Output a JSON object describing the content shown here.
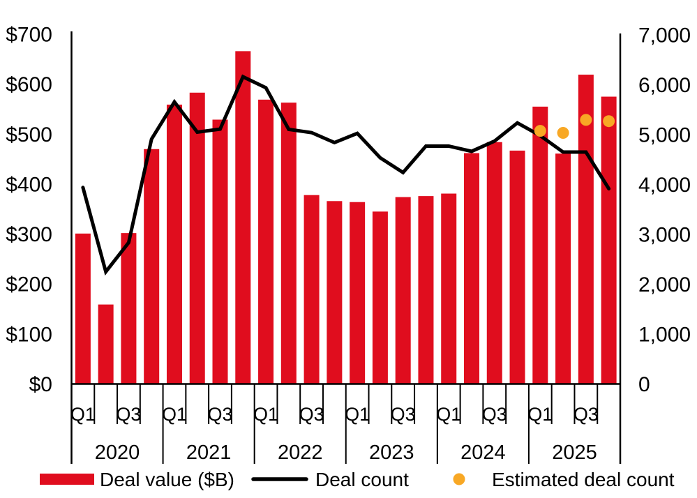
{
  "chart_data": {
    "type": "bar+line+scatter",
    "title": "",
    "categories": [
      "2020 Q1",
      "2020 Q2",
      "2020 Q3",
      "2020 Q4",
      "2021 Q1",
      "2021 Q2",
      "2021 Q3",
      "2021 Q4",
      "2022 Q1",
      "2022 Q2",
      "2022 Q3",
      "2022 Q4",
      "2023 Q1",
      "2023 Q2",
      "2023 Q3",
      "2023 Q4",
      "2024 Q1",
      "2024 Q2",
      "2024 Q3",
      "2024 Q4",
      "2025 Q1",
      "2025 Q2",
      "2025 Q3",
      "2025 Q4"
    ],
    "x_axis": {
      "years": [
        "2020",
        "2021",
        "2022",
        "2023",
        "2024",
        "2025"
      ],
      "quarter_labels": [
        "Q1",
        "Q3"
      ]
    },
    "left_axis": {
      "range": [
        0,
        700
      ],
      "tick_values": [
        0,
        100,
        200,
        300,
        400,
        500,
        600,
        700
      ],
      "tick_labels": [
        "$0",
        "$100",
        "$200",
        "$300",
        "$400",
        "$500",
        "$600",
        "$700"
      ]
    },
    "right_axis": {
      "range": [
        0,
        7000
      ],
      "tick_values": [
        0,
        1000,
        2000,
        3000,
        4000,
        5000,
        6000,
        7000
      ],
      "tick_labels": [
        "0",
        "1,000",
        "2,000",
        "3,000",
        "4,000",
        "5,000",
        "6,000",
        "7,000"
      ]
    },
    "series": [
      {
        "name": "Deal value ($B)",
        "type": "bar",
        "axis": "left",
        "color": "#E00D1E",
        "values": [
          301,
          159,
          302,
          470,
          559,
          583,
          529,
          666,
          569,
          563,
          378,
          366,
          364,
          345,
          374,
          376,
          381,
          462,
          484,
          467,
          555,
          461,
          619,
          575
        ]
      },
      {
        "name": "Deal count",
        "type": "line",
        "axis": "right",
        "color": "#000000",
        "values": [
          3940,
          2250,
          2835,
          4910,
          5655,
          5050,
          5110,
          6160,
          5940,
          5105,
          5040,
          4840,
          5025,
          4535,
          4240,
          4770,
          4770,
          4665,
          4870,
          5235,
          4980,
          4650,
          4650,
          3915
        ]
      },
      {
        "name": "Estimated deal count",
        "type": "scatter",
        "axis": "right",
        "color": "#F8A825",
        "values": [
          null,
          null,
          null,
          null,
          null,
          null,
          null,
          null,
          null,
          null,
          null,
          null,
          null,
          null,
          null,
          null,
          null,
          null,
          null,
          null,
          5075,
          5035,
          5295,
          5270
        ]
      }
    ],
    "legend_position": "bottom",
    "grid": false
  }
}
